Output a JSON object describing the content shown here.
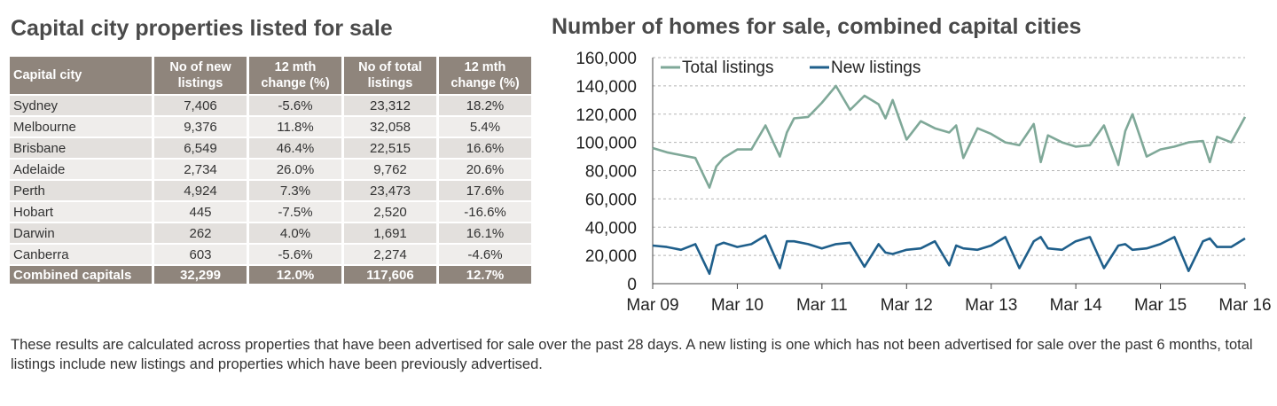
{
  "left_title": "Capital city properties listed for sale",
  "right_title": "Number of homes for sale, combined capital cities",
  "table": {
    "headers": [
      "Capital city",
      "No of new listings",
      "12 mth change (%)",
      "No of total listings",
      "12 mth change (%)"
    ],
    "rows": [
      [
        "Sydney",
        "7,406",
        "-5.6%",
        "23,312",
        "18.2%"
      ],
      [
        "Melbourne",
        "9,376",
        "11.8%",
        "32,058",
        "5.4%"
      ],
      [
        "Brisbane",
        "6,549",
        "46.4%",
        "22,515",
        "16.6%"
      ],
      [
        "Adelaide",
        "2,734",
        "26.0%",
        "9,762",
        "20.6%"
      ],
      [
        "Perth",
        "4,924",
        "7.3%",
        "23,473",
        "17.6%"
      ],
      [
        "Hobart",
        "445",
        "-7.5%",
        "2,520",
        "-16.6%"
      ],
      [
        "Darwin",
        "262",
        "4.0%",
        "1,691",
        "16.1%"
      ],
      [
        "Canberra",
        "603",
        "-5.6%",
        "2,274",
        "-4.6%"
      ]
    ],
    "total": [
      "Combined capitals",
      "32,299",
      "12.0%",
      "117,606",
      "12.7%"
    ]
  },
  "colors": {
    "header_bg": "#8f857c",
    "total_line": "#7fa898",
    "new_line": "#1f5f8b"
  },
  "chart_data": {
    "type": "line",
    "title": "Number of homes for sale, combined capital cities",
    "x_ticks": [
      "Mar 09",
      "Mar 10",
      "Mar 11",
      "Mar 12",
      "Mar 13",
      "Mar 14",
      "Mar 15",
      "Mar 16"
    ],
    "y_ticks": [
      "0",
      "20,000",
      "40,000",
      "60,000",
      "80,000",
      "100,000",
      "120,000",
      "140,000",
      "160,000"
    ],
    "ylim": [
      0,
      160000
    ],
    "grid": true,
    "legend": "top-left",
    "series": [
      {
        "name": "Total listings",
        "color": "#7fa898",
        "x": [
          "2009-03",
          "2009-05",
          "2009-07",
          "2009-09",
          "2009-11",
          "2009-12",
          "2010-01",
          "2010-03",
          "2010-05",
          "2010-07",
          "2010-09",
          "2010-10",
          "2010-11",
          "2011-01",
          "2011-03",
          "2011-05",
          "2011-07",
          "2011-09",
          "2011-11",
          "2011-12",
          "2012-01",
          "2012-03",
          "2012-05",
          "2012-07",
          "2012-09",
          "2012-10",
          "2012-11",
          "2013-01",
          "2013-03",
          "2013-05",
          "2013-07",
          "2013-09",
          "2013-10",
          "2013-11",
          "2014-01",
          "2014-03",
          "2014-05",
          "2014-07",
          "2014-09",
          "2014-10",
          "2014-11",
          "2015-01",
          "2015-03",
          "2015-05",
          "2015-07",
          "2015-09",
          "2015-10",
          "2015-11",
          "2016-01",
          "2016-03"
        ],
        "values": [
          96000,
          93000,
          91000,
          89000,
          68000,
          83000,
          89000,
          95000,
          95000,
          112000,
          90000,
          107000,
          117000,
          118000,
          128000,
          140000,
          123000,
          133000,
          127000,
          117000,
          130000,
          102000,
          115000,
          110000,
          107000,
          112000,
          89000,
          110000,
          106000,
          100000,
          98000,
          113000,
          86000,
          105000,
          100000,
          97000,
          98000,
          112000,
          84000,
          108000,
          120000,
          90000,
          95000,
          97000,
          100000,
          101000,
          86000,
          104000,
          100000,
          118000
        ]
      },
      {
        "name": "New listings",
        "color": "#1f5f8b",
        "x": [
          "2009-03",
          "2009-05",
          "2009-07",
          "2009-09",
          "2009-11",
          "2009-12",
          "2010-01",
          "2010-03",
          "2010-05",
          "2010-07",
          "2010-09",
          "2010-10",
          "2010-11",
          "2011-01",
          "2011-03",
          "2011-05",
          "2011-07",
          "2011-09",
          "2011-11",
          "2011-12",
          "2012-01",
          "2012-03",
          "2012-05",
          "2012-07",
          "2012-09",
          "2012-10",
          "2012-11",
          "2013-01",
          "2013-03",
          "2013-05",
          "2013-07",
          "2013-09",
          "2013-10",
          "2013-11",
          "2014-01",
          "2014-03",
          "2014-05",
          "2014-07",
          "2014-09",
          "2014-10",
          "2014-11",
          "2015-01",
          "2015-03",
          "2015-05",
          "2015-07",
          "2015-09",
          "2015-10",
          "2015-11",
          "2016-01",
          "2016-03"
        ],
        "values": [
          27000,
          26000,
          24000,
          28000,
          7000,
          27000,
          29000,
          26000,
          28000,
          34000,
          11000,
          30000,
          30000,
          28000,
          25000,
          28000,
          29000,
          12000,
          28000,
          22000,
          21000,
          24000,
          25000,
          30000,
          13000,
          27000,
          25000,
          24000,
          27000,
          33000,
          11000,
          30000,
          33000,
          25000,
          24000,
          30000,
          33000,
          11000,
          27000,
          28000,
          24000,
          25000,
          28000,
          33000,
          9000,
          30000,
          32000,
          26000,
          26000,
          32000
        ]
      }
    ]
  },
  "note": "These results are calculated across properties that have been advertised for sale over the past 28 days.  A new listing is one which has not been advertised for sale over the past 6 months, total listings include new listings and properties which have been previously advertised."
}
